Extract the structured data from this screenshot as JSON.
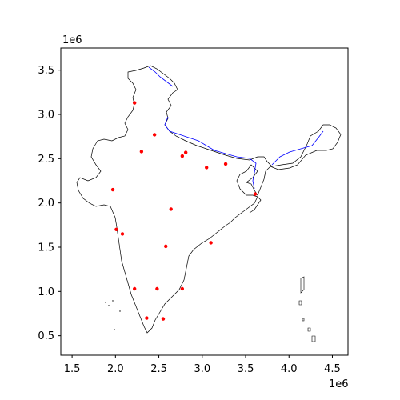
{
  "chart_data": {
    "type": "scatter",
    "title": "",
    "xlabel": "",
    "ylabel": "",
    "x_offset_label": "1e6",
    "y_offset_label": "1e6",
    "xlim": [
      1.37,
      4.68
    ],
    "ylim": [
      0.28,
      3.75
    ],
    "x_ticks": [
      1.5,
      2.0,
      2.5,
      3.0,
      3.5,
      4.0,
      4.5
    ],
    "x_tick_labels": [
      "1.5",
      "2.0",
      "2.5",
      "3.0",
      "3.5",
      "4.0",
      "4.5"
    ],
    "y_ticks": [
      0.5,
      1.0,
      1.5,
      2.0,
      2.5,
      3.0,
      3.5
    ],
    "y_tick_labels": [
      "0.5",
      "1.0",
      "1.5",
      "2.0",
      "2.5",
      "3.0",
      "3.5"
    ],
    "grid": false,
    "legend": "none",
    "point_color": "#ff0000",
    "boundary_color": "#000000",
    "river_color": "#0000ff",
    "points": [
      {
        "x": 2.22,
        "y": 3.13
      },
      {
        "x": 2.45,
        "y": 2.77
      },
      {
        "x": 2.3,
        "y": 2.58
      },
      {
        "x": 2.81,
        "y": 2.57
      },
      {
        "x": 2.77,
        "y": 2.53
      },
      {
        "x": 3.05,
        "y": 2.4
      },
      {
        "x": 3.27,
        "y": 2.44
      },
      {
        "x": 3.61,
        "y": 2.1
      },
      {
        "x": 1.97,
        "y": 2.15
      },
      {
        "x": 2.64,
        "y": 1.93
      },
      {
        "x": 2.01,
        "y": 1.7
      },
      {
        "x": 2.08,
        "y": 1.65
      },
      {
        "x": 2.58,
        "y": 1.51
      },
      {
        "x": 3.1,
        "y": 1.55
      },
      {
        "x": 2.22,
        "y": 1.03
      },
      {
        "x": 2.48,
        "y": 1.03
      },
      {
        "x": 2.77,
        "y": 1.03
      },
      {
        "x": 2.36,
        "y": 0.7
      },
      {
        "x": 2.55,
        "y": 0.69
      }
    ]
  }
}
